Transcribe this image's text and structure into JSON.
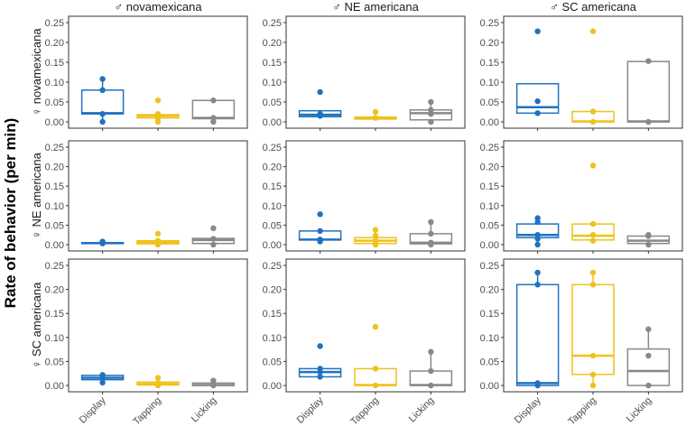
{
  "chart_data": {
    "type": "boxplot",
    "ylabel": "Rate of behavior (per min)",
    "ylim": [
      0,
      0.25
    ],
    "yticks": [
      "0.00",
      "0.05",
      "0.10",
      "0.15",
      "0.20",
      "0.25"
    ],
    "categories": [
      "Display",
      "Tapping",
      "Licking"
    ],
    "colors": {
      "Display": "#1f72c0",
      "Tapping": "#efc11b",
      "Licking": "#888888"
    },
    "columns": [
      "♂ novamexicana",
      "♂ NE americana",
      "♂ SC americana"
    ],
    "rows": [
      "♀ novamexicana",
      "♀ NE americana",
      "♀ SC americana"
    ],
    "panels": [
      [
        [
          {
            "box": [
              0.02,
              0.022,
              0.08
            ],
            "points": [
              0,
              0.02,
              0.08,
              0.108
            ]
          },
          {
            "box": [
              0.01,
              0.015,
              0.018
            ],
            "points": [
              0,
              0.01,
              0.015,
              0.02,
              0.054
            ]
          },
          {
            "box": [
              0.008,
              0.01,
              0.054
            ],
            "points": [
              0,
              0.01,
              0.054
            ]
          }
        ],
        [
          {
            "box": [
              0.013,
              0.018,
              0.028
            ],
            "points": [
              0.015,
              0.02,
              0.075
            ]
          },
          {
            "box": [
              0.007,
              0.01,
              0.012
            ],
            "points": [
              0.01,
              0.025
            ]
          },
          {
            "box": [
              0.005,
              0.022,
              0.03
            ],
            "points": [
              0,
              0.02,
              0.03,
              0.05
            ]
          }
        ],
        [
          {
            "box": [
              0.022,
              0.037,
              0.096
            ],
            "points": [
              0.022,
              0.052,
              0.228
            ]
          },
          {
            "box": [
              0,
              0.001,
              0.026
            ],
            "points": [
              0,
              0.026,
              0.228
            ]
          },
          {
            "box": [
              0,
              0.001,
              0.152
            ],
            "points": [
              0,
              0.153
            ]
          }
        ]
      ],
      [
        [
          {
            "box": [
              0.003,
              0.004,
              0.005
            ],
            "points": [
              0.003,
              0.008
            ]
          },
          {
            "box": [
              0.002,
              0.006,
              0.01
            ],
            "points": [
              0,
              0.01,
              0.028
            ]
          },
          {
            "box": [
              0.003,
              0.012,
              0.016
            ],
            "points": [
              0,
              0.015,
              0.042
            ]
          }
        ],
        [
          {
            "box": [
              0.012,
              0.013,
              0.035
            ],
            "points": [
              0.008,
              0.013,
              0.035,
              0.078
            ]
          },
          {
            "box": [
              0.003,
              0.01,
              0.018
            ],
            "points": [
              0,
              0.01,
              0.023,
              0.038
            ]
          },
          {
            "box": [
              0.002,
              0.005,
              0.028
            ],
            "points": [
              0,
              0.005,
              0.028,
              0.058
            ]
          }
        ],
        [
          {
            "box": [
              0.018,
              0.025,
              0.053
            ],
            "points": [
              0,
              0.015,
              0.025,
              0.058,
              0.068
            ]
          },
          {
            "box": [
              0.012,
              0.023,
              0.053
            ],
            "points": [
              0.01,
              0.025,
              0.053,
              0.203
            ]
          },
          {
            "box": [
              0.003,
              0.01,
              0.022
            ],
            "points": [
              0,
              0.022,
              0.025
            ]
          }
        ]
      ],
      [
        [
          {
            "box": [
              0.012,
              0.016,
              0.021
            ],
            "points": [
              0.006,
              0.015,
              0.022
            ]
          },
          {
            "box": [
              0.001,
              0.003,
              0.007
            ],
            "points": [
              0,
              0.005,
              0.016
            ]
          },
          {
            "box": [
              0,
              0.001,
              0.005
            ],
            "points": [
              0,
              0.01
            ]
          }
        ],
        [
          {
            "box": [
              0.018,
              0.028,
              0.035
            ],
            "points": [
              0.018,
              0.028,
              0.035,
              0.082
            ]
          },
          {
            "box": [
              0,
              0.001,
              0.035
            ],
            "points": [
              0,
              0.035,
              0.122
            ]
          },
          {
            "box": [
              0,
              0.001,
              0.03
            ],
            "points": [
              0,
              0.03,
              0.07
            ]
          }
        ],
        [
          {
            "box": [
              0,
              0.005,
              0.21
            ],
            "points": [
              0,
              0.005,
              0.21,
              0.235
            ]
          },
          {
            "box": [
              0.023,
              0.062,
              0.21
            ],
            "points": [
              0,
              0.023,
              0.062,
              0.21,
              0.235
            ]
          },
          {
            "box": [
              0,
              0.03,
              0.076
            ],
            "points": [
              0,
              0.062,
              0.117
            ]
          }
        ]
      ]
    ]
  }
}
